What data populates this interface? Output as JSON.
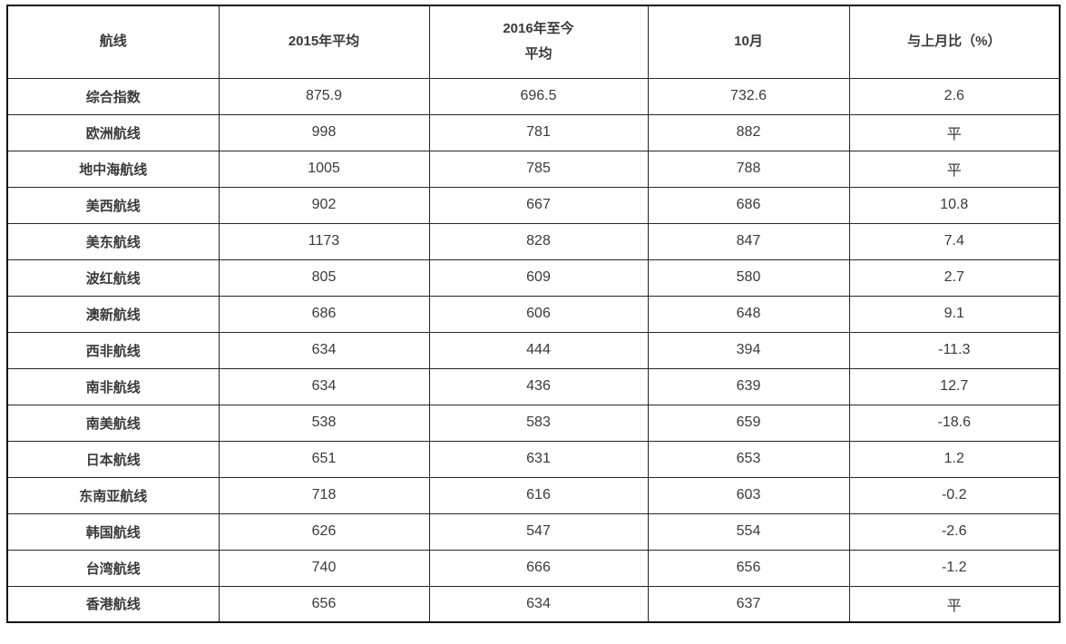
{
  "chart_data": {
    "type": "table",
    "columns": [
      "航线",
      "2015年平均",
      "2016年至今平均",
      "10月",
      "与上月比（%）"
    ],
    "header_display": {
      "route": "航线",
      "avg_2015": "2015年平均",
      "avg_2016_line1": "2016年至今",
      "avg_2016_line2": "平均",
      "october": "10月",
      "mom_change": "与上月比（%）"
    },
    "rows": [
      [
        "综合指数",
        "875.9",
        "696.5",
        "732.6",
        "2.6"
      ],
      [
        "欧洲航线",
        "998",
        "781",
        "882",
        "平"
      ],
      [
        "地中海航线",
        "1005",
        "785",
        "788",
        "平"
      ],
      [
        "美西航线",
        "902",
        "667",
        "686",
        "10.8"
      ],
      [
        "美东航线",
        "1173",
        "828",
        "847",
        "7.4"
      ],
      [
        "波红航线",
        "805",
        "609",
        "580",
        "2.7"
      ],
      [
        "澳新航线",
        "686",
        "606",
        "648",
        "9.1"
      ],
      [
        "西非航线",
        "634",
        "444",
        "394",
        "-11.3"
      ],
      [
        "南非航线",
        "634",
        "436",
        "639",
        "12.7"
      ],
      [
        "南美航线",
        "538",
        "583",
        "659",
        "-18.6"
      ],
      [
        "日本航线",
        "651",
        "631",
        "653",
        "1.2"
      ],
      [
        "东南亚航线",
        "718",
        "616",
        "603",
        "-0.2"
      ],
      [
        "韩国航线",
        "626",
        "547",
        "554",
        "-2.6"
      ],
      [
        "台湾航线",
        "740",
        "666",
        "656",
        "-1.2"
      ],
      [
        "香港航线",
        "656",
        "634",
        "637",
        "平"
      ]
    ]
  },
  "colors": {
    "outer_border": "#141414",
    "inner_border": "#262626",
    "text": "#3a3a3a",
    "background": "#ffffff"
  }
}
